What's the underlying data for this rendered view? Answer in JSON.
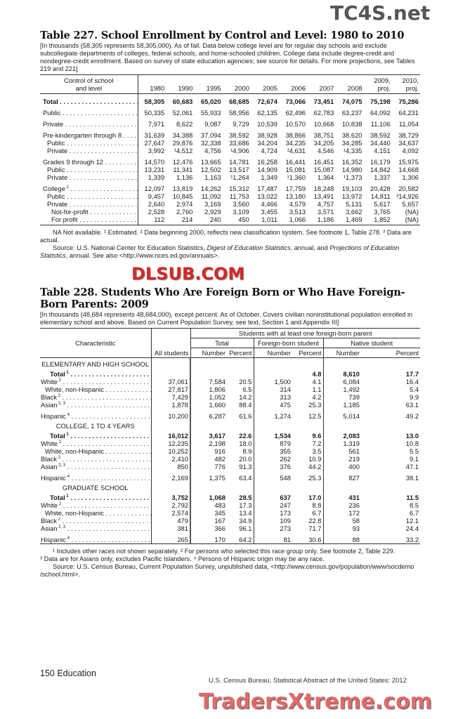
{
  "table227": {
    "title": "Table 227. School Enrollment by Control and Level: 1980 to 2010",
    "headnote": "[In thousands (58,305 represents 58,305,000). As of fall. Data below college level are for regular day schools and exclude subcollegiate departments of colleges, federal schools, and home-schooled children. College data include degree-credit and nondegree-credit enrollment. Based on survey of state education agencies; see source for details. For more projections, see Tables 219 and 221]",
    "stub_header": [
      "Control of school",
      "and level"
    ],
    "columns": [
      [
        "",
        "1980"
      ],
      [
        "",
        "1990"
      ],
      [
        "",
        "1995"
      ],
      [
        "",
        "2000"
      ],
      [
        "",
        "2005"
      ],
      [
        "",
        "2006"
      ],
      [
        "",
        "2007"
      ],
      [
        "",
        "2008"
      ],
      [
        "2009,",
        "proj."
      ],
      [
        "2010,",
        "proj."
      ]
    ],
    "rows": [
      {
        "label": "Total",
        "bold": true,
        "gap": true,
        "values": [
          "58,305",
          "60,683",
          "65,020",
          "68,685",
          "72,674",
          "73,066",
          "73,451",
          "74,075",
          "75,198",
          "75,286"
        ]
      },
      {
        "label": "Public",
        "gap": true,
        "values": [
          "50,335",
          "52,061",
          "55,933",
          "58,956",
          "62,135",
          "62,496",
          "62,783",
          "63,237",
          "64,092",
          "64,231"
        ]
      },
      {
        "label": "Private",
        "gap": true,
        "values": [
          "7,971",
          "8,622",
          "9,087",
          "9,729",
          "10,539",
          "10,570",
          "10,668",
          "10,838",
          "11,106",
          "11,054"
        ]
      },
      {
        "label": "Pre-kindergarten through 8",
        "gap": true,
        "values": [
          "31,639",
          "34,388",
          "37,094",
          "38,592",
          "38,928",
          "38,866",
          "38,751",
          "38,620",
          "38,592",
          "38,729"
        ]
      },
      {
        "label": "Public",
        "indent": 1,
        "values": [
          "27,647",
          "29,876",
          "32,338",
          "33,686",
          "34,204",
          "34,235",
          "34,205",
          "34,285",
          "34,440",
          "34,637"
        ]
      },
      {
        "label": "Private",
        "indent": 1,
        "values": [
          "3,992",
          "¹4,512",
          "4,756",
          "¹4,906",
          "4,724",
          "¹4,631",
          "4,546",
          "¹4,335",
          "4,151",
          "4,092"
        ]
      },
      {
        "label": "Grades 9 through 12",
        "gap": true,
        "values": [
          "14,570",
          "12,476",
          "13,665",
          "14,781",
          "16,258",
          "16,441",
          "16,451",
          "16,352",
          "16,179",
          "15,975"
        ]
      },
      {
        "label": "Public",
        "indent": 1,
        "values": [
          "13,231",
          "11,341",
          "12,502",
          "13,517",
          "14,909",
          "15,081",
          "15,087",
          "14,980",
          "14,842",
          "14,668"
        ]
      },
      {
        "label": "Private",
        "indent": 1,
        "values": [
          "1,339",
          "1,136",
          "1,163",
          "¹1,264",
          "1,349",
          "¹1,360",
          "1,364",
          "¹1,373",
          "1,337",
          "1,306"
        ]
      },
      {
        "label": "College",
        "sup": "2",
        "gap": true,
        "values": [
          "12,097",
          "13,819",
          "14,262",
          "15,312",
          "17,487",
          "17,759",
          "18,248",
          "19,103",
          "20,428",
          "20,582"
        ]
      },
      {
        "label": "Public",
        "indent": 1,
        "values": [
          "9,457",
          "10,845",
          "11,092",
          "11,753",
          "13,022",
          "13,180",
          "13,491",
          "13,972",
          "14,811",
          "³14,926"
        ]
      },
      {
        "label": "Private",
        "indent": 1,
        "values": [
          "2,640",
          "2,974",
          "3,169",
          "3,560",
          "4,466",
          "4,579",
          "4,757",
          "5,131",
          "5,617",
          "5,657"
        ]
      },
      {
        "label": "Not-for-profit",
        "indent": 2,
        "values": [
          "2,528",
          "2,760",
          "2,929",
          "3,109",
          "3,455",
          "3,513",
          "3,571",
          "3,662",
          "3,765",
          "(NA)"
        ]
      },
      {
        "label": "For profit",
        "indent": 2,
        "values": [
          "112",
          "214",
          "240",
          "450",
          "1,011",
          "1,066",
          "1,186",
          "1,469",
          "1,852",
          "(NA)"
        ]
      }
    ],
    "footnotes": "NA Not available. ¹ Estimated. ² Data beginning 2000, reflects new classification system. See footnote 1, Table 278. ³ Data are actual.",
    "source_a": "Source: U.S. National Center for Education Statistics, ",
    "source_b": "Digest of Education Statistics",
    "source_c": ", annual, and ",
    "source_d": "Projections of Education Statistics",
    "source_e": ", annual. See also <http://www.nces.ed.gov/annuals>."
  },
  "table228": {
    "title": "Table 228. Students Who Are Foreign Born or Who Have Foreign-Born Parents: 2009",
    "headnote": "[In thousands (48,684 represents 48,684,000), except percent. As of October. Covers civilian noninstitutional population enrolled in elementary school and above. Based on Current Population Survey, see  text, Section 1 and Appendix III]",
    "header": {
      "characteristic": "Characteristic",
      "all_students": "All students",
      "group": "Students with at least one foreign-born parent",
      "total": "Total",
      "foreign_born": "Foreign-born student",
      "native": "Native student",
      "number": "Number",
      "percent": "Percent"
    },
    "sections": [
      {
        "heading": "ELEMENTARY AND HIGH SCHOOL",
        "rows": [
          {
            "label": "Total",
            "sup": "1",
            "bold": true,
            "values": [
              "",
              "",
              "",
              "",
              "4.8",
              "8,610",
              "17.7"
            ]
          },
          {
            "label": "White",
            "sup": "2",
            "values": [
              "37,061",
              "7,584",
              "20.5",
              "1,500",
              "4.1",
              "6,084",
              "16.4"
            ]
          },
          {
            "label": "White, non-Hispanic",
            "indent": 1,
            "values": [
              "27,817",
              "1,806",
              "6.5",
              "314",
              "1.1",
              "1,492",
              "5.4"
            ]
          },
          {
            "label": "Black",
            "sup": "2",
            "values": [
              "7,429",
              "1,052",
              "14.2",
              "313",
              "4.2",
              "739",
              "9.9"
            ]
          },
          {
            "label": "Asian",
            "sup": "2, 3",
            "values": [
              "1,878",
              "1,660",
              "88.4",
              "475",
              "25.3",
              "1,185",
              "63.1"
            ]
          },
          {
            "label": "Hispanic",
            "sup": "4",
            "gap": true,
            "values": [
              "10,200",
              "6,287",
              "61.6",
              "1,274",
              "12.5",
              "5,014",
              "49.2"
            ]
          }
        ]
      },
      {
        "heading": "COLLEGE, 1 TO 4 YEARS",
        "rows": [
          {
            "label": "Total",
            "sup": "1",
            "bold": true,
            "values": [
              "16,012",
              "3,617",
              "22.6",
              "1,534",
              "9.6",
              "2,083",
              "13.0"
            ]
          },
          {
            "label": "White",
            "sup": "2",
            "values": [
              "12,235",
              "2,198",
              "18.0",
              "879",
              "7.2",
              "1,319",
              "10.8"
            ]
          },
          {
            "label": "White, non-Hispanic",
            "indent": 1,
            "values": [
              "10,252",
              "916",
              "8.9",
              "355",
              "3.5",
              "561",
              "5.5"
            ]
          },
          {
            "label": "Black",
            "sup": "2",
            "values": [
              "2,410",
              "482",
              "20.0",
              "262",
              "10.9",
              "219",
              "9.1"
            ]
          },
          {
            "label": "Asian",
            "sup": "2, 3",
            "values": [
              "850",
              "776",
              "91.3",
              "376",
              "44.2",
              "400",
              "47.1"
            ]
          },
          {
            "label": "Hispanic",
            "sup": "4",
            "gap": true,
            "values": [
              "2,169",
              "1,375",
              "63.4",
              "548",
              "25.3",
              "827",
              "38.1"
            ]
          }
        ]
      },
      {
        "heading": "GRADUATE SCHOOL",
        "rows": [
          {
            "label": "Total",
            "sup": "1",
            "bold": true,
            "values": [
              "3,752",
              "1,068",
              "28.5",
              "637",
              "17.0",
              "431",
              "11.5"
            ]
          },
          {
            "label": "White",
            "sup": "2",
            "values": [
              "2,792",
              "483",
              "17.3",
              "247",
              "8.8",
              "236",
              "8.5"
            ]
          },
          {
            "label": "White, non-Hispanic",
            "indent": 1,
            "values": [
              "2,574",
              "345",
              "13.4",
              "173",
              "6.7",
              "172",
              "6.7"
            ]
          },
          {
            "label": "Black",
            "sup": "2",
            "values": [
              "479",
              "167",
              "34.9",
              "109",
              "22.8",
              "58",
              "12.1"
            ]
          },
          {
            "label": "Asian",
            "sup": "2, 3",
            "values": [
              "381",
              "366",
              "96.1",
              "273",
              "71.7",
              "93",
              "24.4"
            ]
          },
          {
            "label": "Hispanic",
            "sup": "4",
            "gap": true,
            "values": [
              "265",
              "170",
              "64.2",
              "81",
              "30.6",
              "88",
              "33.2"
            ]
          }
        ]
      }
    ],
    "footnote1": "¹ Includes other races not shown separately. ² For persons who selected this race group only. See footnote 2, Table 229.",
    "footnote2": "³ Data are for Asians only, excludes Pacific Islanders. ⁴ Persons of Hispanic origin may be any race.",
    "source": "Source: U.S. Census Bureau, Current Population Survey, unpublished data, <http://www.census.gov/population/www/socdemo /school.html>."
  },
  "footer": {
    "page": "150  Education",
    "publication": "U.S. Census Bureau, Statistical Abstract of the United States: 2012"
  },
  "watermarks": [
    "TC4S.net",
    "DLSUB.COM",
    "TradersXtreme.com"
  ],
  "colors": {
    "watermark_red": "#d42a2a",
    "watermark_gray": "#555555"
  }
}
